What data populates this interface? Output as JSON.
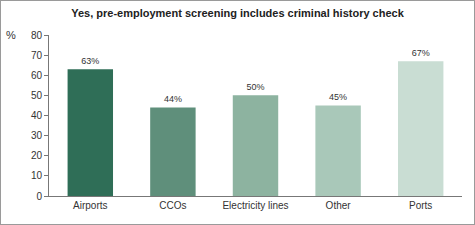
{
  "chart_data": {
    "type": "bar",
    "title": "Yes, pre-employment screening includes criminal history check",
    "ylabel": "%",
    "categories": [
      "Airports",
      "CCOs",
      "Electricity lines",
      "Other",
      "Ports"
    ],
    "values": [
      63,
      44,
      50,
      45,
      67
    ],
    "value_labels": [
      "63%",
      "44%",
      "50%",
      "45%",
      "67%"
    ],
    "colors": [
      "#2f6e57",
      "#5f8f7b",
      "#8db3a0",
      "#a9c8b9",
      "#c9ddd3"
    ],
    "ylim": [
      0,
      80
    ],
    "yticks": [
      0,
      10,
      20,
      30,
      40,
      50,
      60,
      70,
      80
    ],
    "grid": false,
    "data_labels": true
  }
}
